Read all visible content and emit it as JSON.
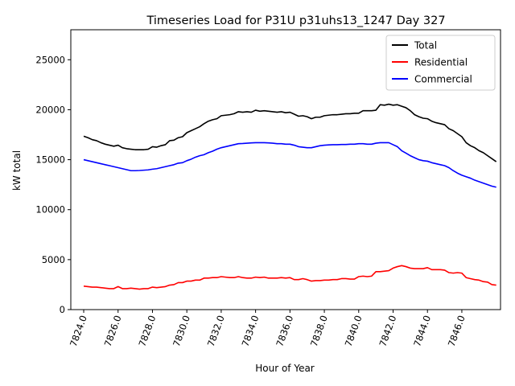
{
  "chart_data": {
    "type": "line",
    "title": "Timeseries Load for P31U p31uhs13_1247  Day 327",
    "xlabel": "Hour of Year",
    "ylabel": "kW total",
    "xlim": [
      7823.25,
      7848.25
    ],
    "ylim": [
      0,
      28000
    ],
    "xticks": [
      7824,
      7826,
      7828,
      7830,
      7832,
      7834,
      7836,
      7838,
      7840,
      7842,
      7844,
      7846
    ],
    "xtick_labels": [
      "7824.0",
      "7826.0",
      "7828.0",
      "7830.0",
      "7832.0",
      "7834.0",
      "7836.0",
      "7838.0",
      "7840.0",
      "7842.0",
      "7844.0",
      "7846.0"
    ],
    "yticks": [
      0,
      5000,
      10000,
      15000,
      20000,
      25000
    ],
    "ytick_labels": [
      "0",
      "5000",
      "10000",
      "15000",
      "20000",
      "25000"
    ],
    "legend_position": "top-right",
    "x_start": 7824.0,
    "x_step": 0.25,
    "series": [
      {
        "name": "Total",
        "color": "#000000",
        "values": [
          17350,
          17200,
          17000,
          16900,
          16700,
          16550,
          16450,
          16350,
          16450,
          16200,
          16100,
          16050,
          16000,
          16000,
          16000,
          16050,
          16300,
          16250,
          16400,
          16500,
          16900,
          16950,
          17200,
          17300,
          17700,
          17900,
          18100,
          18300,
          18600,
          18850,
          19000,
          19100,
          19400,
          19450,
          19500,
          19600,
          19800,
          19750,
          19800,
          19750,
          19950,
          19850,
          19900,
          19850,
          19800,
          19750,
          19800,
          19700,
          19750,
          19550,
          19350,
          19400,
          19300,
          19100,
          19250,
          19250,
          19400,
          19450,
          19500,
          19500,
          19550,
          19600,
          19600,
          19650,
          19650,
          19900,
          19900,
          19900,
          19950,
          20500,
          20450,
          20550,
          20450,
          20500,
          20350,
          20200,
          19900,
          19500,
          19300,
          19150,
          19100,
          18850,
          18700,
          18600,
          18500,
          18100,
          17900,
          17600,
          17300,
          16700,
          16400,
          16200,
          15900,
          15700,
          15400,
          15100,
          14800
        ]
      },
      {
        "name": "Residential",
        "color": "#ff0000",
        "values": [
          2350,
          2300,
          2250,
          2250,
          2200,
          2150,
          2100,
          2100,
          2300,
          2100,
          2100,
          2150,
          2100,
          2050,
          2100,
          2100,
          2250,
          2200,
          2250,
          2300,
          2450,
          2500,
          2700,
          2700,
          2850,
          2850,
          2950,
          2950,
          3150,
          3150,
          3200,
          3200,
          3300,
          3250,
          3200,
          3200,
          3300,
          3200,
          3150,
          3150,
          3250,
          3200,
          3250,
          3150,
          3150,
          3150,
          3200,
          3150,
          3200,
          3000,
          3000,
          3100,
          3000,
          2850,
          2900,
          2900,
          2950,
          2950,
          3000,
          3000,
          3100,
          3100,
          3050,
          3050,
          3300,
          3350,
          3300,
          3350,
          3800,
          3800,
          3850,
          3900,
          4150,
          4300,
          4400,
          4300,
          4150,
          4100,
          4100,
          4100,
          4200,
          4000,
          4000,
          4000,
          3950,
          3700,
          3650,
          3700,
          3650,
          3200,
          3100,
          3000,
          2950,
          2800,
          2750,
          2500,
          2450
        ]
      },
      {
        "name": "Commercial",
        "color": "#0000ff",
        "values": [
          15000,
          14900,
          14800,
          14700,
          14600,
          14500,
          14400,
          14300,
          14200,
          14100,
          14000,
          13900,
          13900,
          13920,
          13950,
          13980,
          14050,
          14100,
          14200,
          14300,
          14400,
          14500,
          14650,
          14700,
          14900,
          15050,
          15250,
          15400,
          15500,
          15700,
          15850,
          16050,
          16200,
          16300,
          16400,
          16500,
          16600,
          16620,
          16650,
          16680,
          16700,
          16700,
          16700,
          16680,
          16650,
          16600,
          16600,
          16550,
          16550,
          16450,
          16300,
          16250,
          16200,
          16200,
          16300,
          16400,
          16450,
          16480,
          16500,
          16500,
          16520,
          16520,
          16550,
          16550,
          16600,
          16600,
          16550,
          16550,
          16650,
          16700,
          16700,
          16700,
          16500,
          16300,
          15900,
          15650,
          15400,
          15200,
          15000,
          14900,
          14850,
          14700,
          14600,
          14500,
          14400,
          14200,
          13900,
          13650,
          13450,
          13300,
          13150,
          12950,
          12800,
          12650,
          12500,
          12350,
          12250
        ]
      }
    ]
  }
}
